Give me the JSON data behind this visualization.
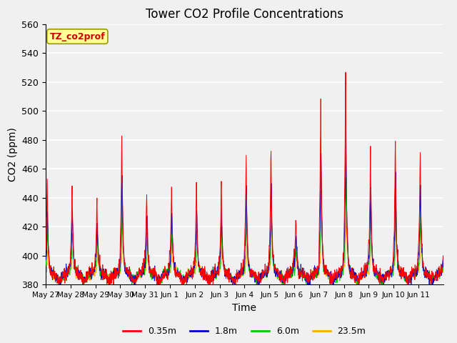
{
  "title": "Tower CO2 Profile Concentrations",
  "xlabel": "Time",
  "ylabel": "CO2 (ppm)",
  "label_tag": "TZ_co2prof",
  "ylim": [
    380,
    560
  ],
  "yticks": [
    380,
    400,
    420,
    440,
    460,
    480,
    500,
    520,
    540,
    560
  ],
  "xtick_labels": [
    "May 27",
    "May 28",
    "May 29",
    "May 30",
    "May 31",
    "Jun 1",
    "Jun 2",
    "Jun 3",
    "Jun 4",
    "Jun 5",
    "Jun 6",
    "Jun 7",
    "Jun 8",
    "Jun 9",
    "Jun 10",
    "Jun 11"
  ],
  "colors": {
    "0.35m": "#ff0000",
    "1.8m": "#0000cc",
    "6.0m": "#00cc00",
    "23.5m": "#ffaa00"
  },
  "legend_labels": [
    "0.35m",
    "1.8m",
    "6.0m",
    "23.5m"
  ],
  "fig_bg_color": "#f0f0f0",
  "plot_bg_color": "#f0f0f0",
  "grid_color": "#ffffff",
  "tag_bg_color": "#ffff99",
  "tag_border_color": "#999900",
  "tag_text_color": "#cc0000"
}
